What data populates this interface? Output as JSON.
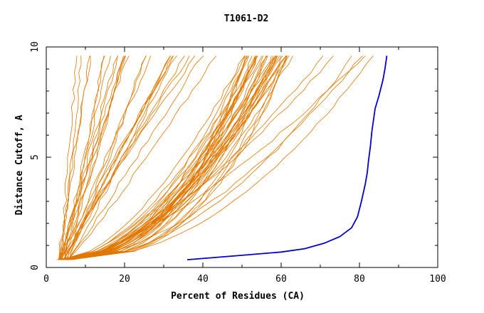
{
  "chart_data": {
    "type": "line",
    "title": "T1061-D2",
    "xlabel": "Percent of Residues (CA)",
    "ylabel": "Distance Cutoff, A",
    "xlim": [
      0,
      100
    ],
    "ylim": [
      0,
      10
    ],
    "xticks": [
      "0",
      "20",
      "40",
      "60",
      "80",
      "100"
    ],
    "yticks": [
      "0",
      "5",
      "10"
    ],
    "grid": false,
    "colors": {
      "highlight": "#0000cc",
      "others": "#e07800"
    },
    "highlight": {
      "x": [
        36,
        50,
        60,
        66,
        71,
        75,
        78,
        79.5,
        80.5,
        81.5,
        82,
        82.3,
        82.8,
        83.2,
        84,
        85,
        86,
        86.5,
        87
      ],
      "y": [
        0.35,
        0.55,
        0.7,
        0.85,
        1.1,
        1.4,
        1.8,
        2.3,
        3.0,
        3.8,
        4.3,
        4.8,
        5.5,
        6.2,
        7.2,
        7.8,
        8.5,
        9.0,
        9.6
      ]
    },
    "series_groups": [
      {
        "count": 20,
        "x_at_bottom": [
          3,
          5
        ],
        "x_at_top": [
          7,
          37
        ],
        "y_mid": [
          0.35,
          1.5,
          3,
          5,
          7,
          9.6
        ]
      },
      {
        "count": 40,
        "x_at_bottom": [
          3,
          6
        ],
        "x_at_top": [
          50,
          64
        ],
        "y_mid": [
          0.35,
          1.0,
          2.0,
          3.0,
          5.0,
          7.0,
          9.6
        ]
      },
      {
        "count": 8,
        "x_at_bottom": [
          4,
          6
        ],
        "x_at_top": [
          20,
          45
        ],
        "y_mid": [
          0.35,
          2,
          5,
          7.5,
          9.6
        ]
      },
      {
        "count": 6,
        "x_at_bottom": [
          5,
          7
        ],
        "x_at_top": [
          70,
          84
        ],
        "y_mid": [
          0.35,
          1.5,
          3,
          5,
          7,
          9.6
        ]
      }
    ]
  }
}
